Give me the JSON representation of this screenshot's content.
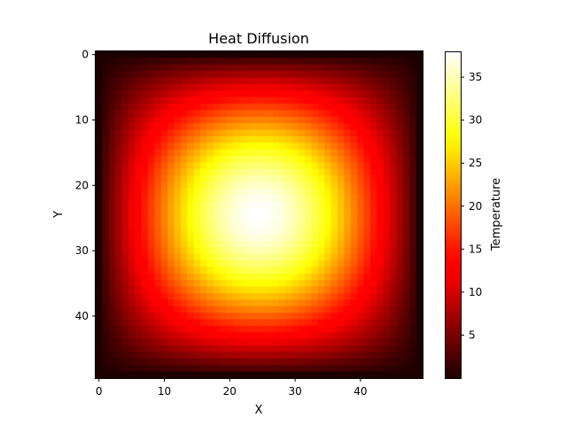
{
  "chart_data": {
    "type": "heatmap",
    "title": "Heat Diffusion",
    "xlabel": "X",
    "ylabel": "Y",
    "grid_size": [
      50,
      50
    ],
    "xlim": [
      -0.5,
      49.5
    ],
    "ylim": [
      49.5,
      -0.5
    ],
    "x_ticks": [
      0,
      10,
      20,
      30,
      40
    ],
    "y_ticks": [
      0,
      10,
      20,
      30,
      40
    ],
    "x_tick_labels": [
      "0",
      "10",
      "20",
      "30",
      "40"
    ],
    "y_tick_labels": [
      "0",
      "10",
      "20",
      "30",
      "40"
    ],
    "hotspot_center": [
      24.5,
      24.5
    ],
    "value_range": [
      0,
      38
    ],
    "colormap": "hot",
    "grid": false,
    "colorbar": {
      "label": "Temperature",
      "ticks": [
        5,
        10,
        15,
        20,
        25,
        30,
        35
      ],
      "tick_labels": [
        "5",
        "10",
        "15",
        "20",
        "25",
        "30",
        "35"
      ],
      "range": [
        0,
        38
      ]
    }
  }
}
